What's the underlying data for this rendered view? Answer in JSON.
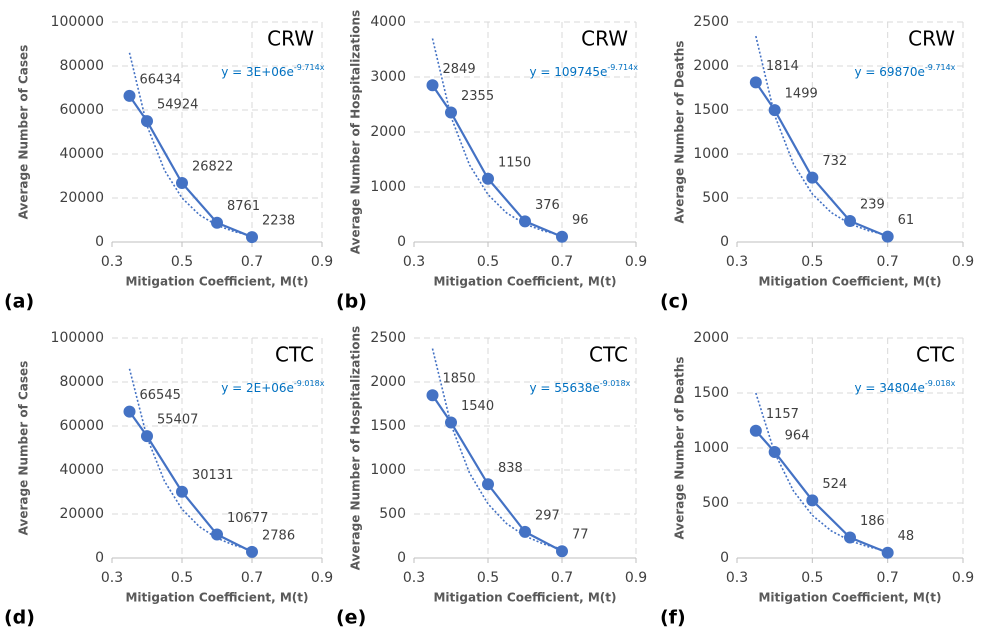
{
  "chart_data": [
    {
      "type": "line",
      "panel": "(a)",
      "title": "CRW",
      "y_label": "Average Number of Cases",
      "x_label": "Mitigation Coefficient, M(t)",
      "equation": "y = 3E+06e",
      "equation_exponent": "-9.714x",
      "x": [
        0.35,
        0.4,
        0.5,
        0.6,
        0.7
      ],
      "values": [
        66434,
        54924,
        26822,
        8761,
        2238
      ],
      "trendline": {
        "x": [
          0.35,
          0.4,
          0.45,
          0.5,
          0.55,
          0.6,
          0.65,
          0.7
        ],
        "values": [
          86000,
          52900,
          32600,
          20000,
          12300,
          7580,
          4670,
          2870
        ]
      },
      "color": "#4472c4",
      "equation_color": "#0070c0",
      "xlim": [
        0.3,
        0.9
      ],
      "xticks": [
        0.3,
        0.5,
        0.7,
        0.9
      ],
      "ylim": [
        0,
        100000
      ],
      "yticks": [
        0,
        20000,
        40000,
        60000,
        80000,
        100000
      ],
      "grid": true
    },
    {
      "type": "line",
      "panel": "(b)",
      "title": "CRW",
      "y_label": "Average Number of Hospitalizations",
      "x_label": "Mitigation Coefficient, M(t)",
      "equation": "y = 109745e",
      "equation_exponent": "-9.714x",
      "x": [
        0.35,
        0.4,
        0.5,
        0.6,
        0.7
      ],
      "values": [
        2849,
        2355,
        1150,
        376,
        96
      ],
      "trendline": {
        "x": [
          0.35,
          0.4,
          0.45,
          0.5,
          0.55,
          0.6,
          0.65,
          0.7
        ],
        "values": [
          3700,
          2277,
          1401,
          862,
          530,
          326,
          201,
          124
        ]
      },
      "color": "#4472c4",
      "equation_color": "#0070c0",
      "xlim": [
        0.3,
        0.9
      ],
      "xticks": [
        0.3,
        0.5,
        0.7,
        0.9
      ],
      "ylim": [
        0,
        4000
      ],
      "yticks": [
        0,
        1000,
        2000,
        3000,
        4000
      ],
      "grid": true
    },
    {
      "type": "line",
      "panel": "(c)",
      "title": "CRW",
      "y_label": "Average Number of Deaths",
      "x_label": "Mitigation Coefficient, M(t)",
      "equation": "y = 69870e",
      "equation_exponent": "-9.714x",
      "x": [
        0.35,
        0.4,
        0.5,
        0.6,
        0.7
      ],
      "values": [
        1814,
        1499,
        732,
        239,
        61
      ],
      "trendline": {
        "x": [
          0.35,
          0.4,
          0.45,
          0.5,
          0.55,
          0.6,
          0.65,
          0.7
        ],
        "values": [
          2340,
          1440,
          886,
          545,
          335,
          206,
          127,
          78
        ]
      },
      "color": "#4472c4",
      "equation_color": "#0070c0",
      "xlim": [
        0.3,
        0.9
      ],
      "xticks": [
        0.3,
        0.5,
        0.7,
        0.9
      ],
      "ylim": [
        0,
        2500
      ],
      "yticks": [
        0,
        500,
        1000,
        1500,
        2000,
        2500
      ],
      "grid": true
    },
    {
      "type": "line",
      "panel": "(d)",
      "title": "CTC",
      "y_label": "Average Number of Cases",
      "x_label": "Mitigation Coefficient, M(t)",
      "equation": "y = 2E+06e",
      "equation_exponent": "-9.018x",
      "x": [
        0.35,
        0.4,
        0.5,
        0.6,
        0.7
      ],
      "values": [
        66545,
        55407,
        30131,
        10677,
        2786
      ],
      "trendline": {
        "x": [
          0.35,
          0.4,
          0.45,
          0.5,
          0.55,
          0.6,
          0.65,
          0.7
        ],
        "values": [
          86000,
          54800,
          34900,
          22200,
          14200,
          9020,
          5750,
          3660
        ]
      },
      "color": "#4472c4",
      "equation_color": "#0070c0",
      "xlim": [
        0.3,
        0.9
      ],
      "xticks": [
        0.3,
        0.5,
        0.7,
        0.9
      ],
      "ylim": [
        0,
        100000
      ],
      "yticks": [
        0,
        20000,
        40000,
        60000,
        80000,
        100000
      ],
      "grid": true
    },
    {
      "type": "line",
      "panel": "(e)",
      "title": "CTC",
      "y_label": "Average Number of Hospitalizations",
      "x_label": "Mitigation Coefficient, M(t)",
      "equation": "y = 55638e",
      "equation_exponent": "-9.018x",
      "x": [
        0.35,
        0.4,
        0.5,
        0.6,
        0.7
      ],
      "values": [
        1850,
        1540,
        838,
        297,
        77
      ],
      "trendline": {
        "x": [
          0.35,
          0.4,
          0.45,
          0.5,
          0.55,
          0.6,
          0.65,
          0.7
        ],
        "values": [
          2380,
          1516,
          966,
          615,
          392,
          250,
          159,
          101
        ]
      },
      "color": "#4472c4",
      "equation_color": "#0070c0",
      "xlim": [
        0.3,
        0.9
      ],
      "xticks": [
        0.3,
        0.5,
        0.7,
        0.9
      ],
      "ylim": [
        0,
        2500
      ],
      "yticks": [
        0,
        500,
        1000,
        1500,
        2000,
        2500
      ],
      "grid": true
    },
    {
      "type": "line",
      "panel": "(f)",
      "title": "CTC",
      "y_label": "Average Number of Deaths",
      "x_label": "Mitigation Coefficient, M(t)",
      "equation": "y = 34804e",
      "equation_exponent": "-9.018x",
      "x": [
        0.35,
        0.4,
        0.5,
        0.6,
        0.7
      ],
      "values": [
        1157,
        964,
        524,
        186,
        48
      ],
      "trendline": {
        "x": [
          0.35,
          0.4,
          0.45,
          0.5,
          0.55,
          0.6,
          0.65,
          0.7
        ],
        "values": [
          1500,
          955,
          609,
          388,
          247,
          157,
          100,
          64
        ]
      },
      "color": "#4472c4",
      "equation_color": "#0070c0",
      "xlim": [
        0.3,
        0.9
      ],
      "xticks": [
        0.3,
        0.5,
        0.7,
        0.9
      ],
      "ylim": [
        0,
        2000
      ],
      "yticks": [
        0,
        500,
        1000,
        1500,
        2000
      ],
      "grid": true
    }
  ]
}
